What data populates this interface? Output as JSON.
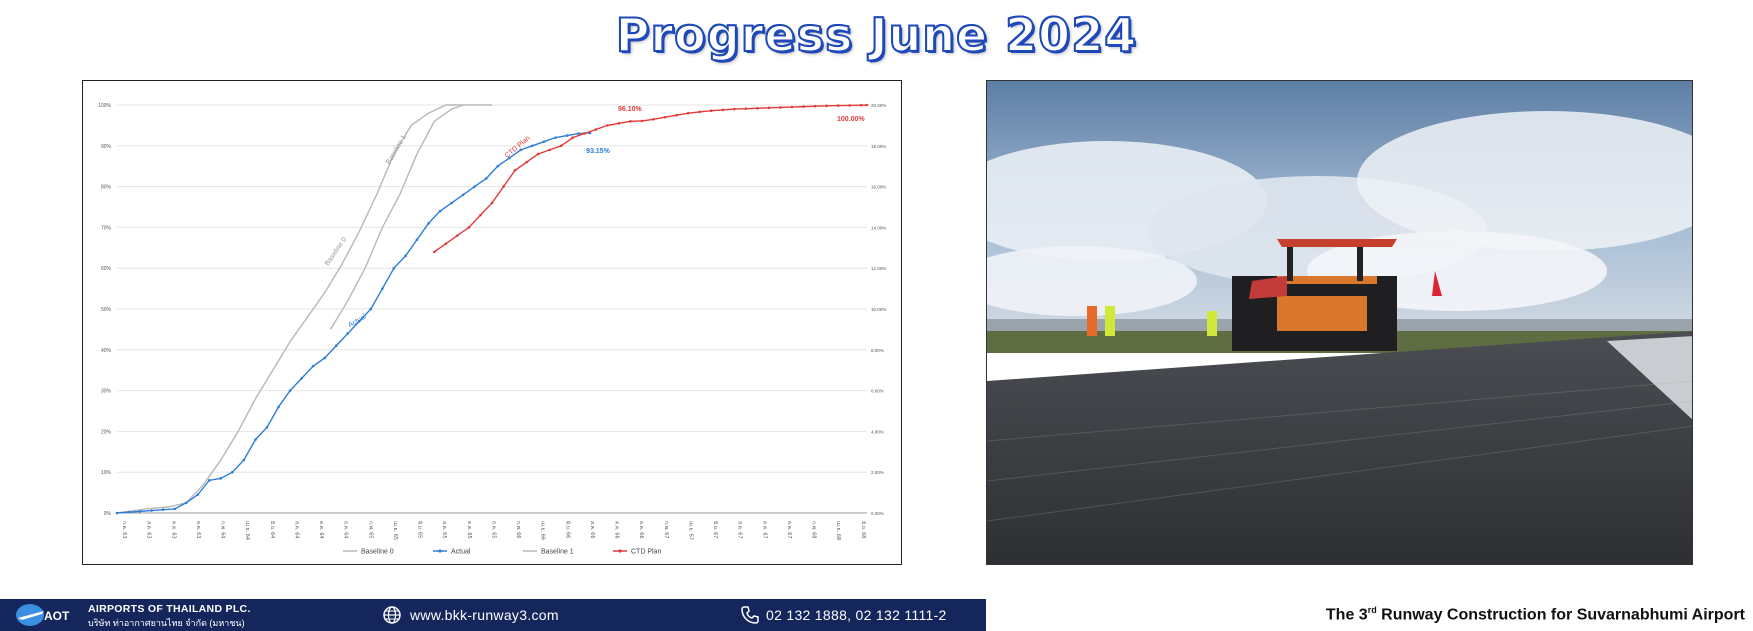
{
  "header": {
    "title": "Progress June 2024"
  },
  "footer": {
    "org_en": "AIRPORTS OF THAILAND PLC.",
    "org_th": "บริษัท ท่าอากาศยานไทย จำกัด (มหาชน)",
    "logo_text": "AOT",
    "website": "www.bkk-runway3.com",
    "phone": "02 132 1888, 02 132 1111-2",
    "project_pre": "The 3",
    "project_sup": "rd",
    "project_post": " Runway Construction for Suvarnabhumi Airport"
  },
  "colors": {
    "title_outline": "#1f49b8",
    "footer_bg": "#14265c",
    "actual": "#2e7dd7",
    "ctd": "#e23b3b",
    "baseline": "#b8b8b8"
  },
  "chart_data": {
    "type": "line",
    "yticks_left": [
      "0%",
      "10%",
      "20%",
      "30%",
      "40%",
      "50%",
      "60%",
      "70%",
      "80%",
      "90%",
      "100%"
    ],
    "yticks_right": [
      "0.00%",
      "2.00%",
      "4.00%",
      "6.00%",
      "8.00%",
      "10.00%",
      "12.00%",
      "14.00%",
      "16.00%",
      "18.00%",
      "20.00%"
    ],
    "xlabels": [
      "ก.ค. 63",
      "ส.ค. 63",
      "ต.ค. 63",
      "ธ.ค. 63",
      "ก.พ. 64",
      "เม.ย. 64",
      "มิ.ย. 64",
      "ส.ค. 64",
      "ต.ค. 64",
      "ธ.ค. 64",
      "ก.พ. 65",
      "เม.ย. 65",
      "มิ.ย. 65",
      "ส.ค. 65",
      "ต.ค. 65",
      "ธ.ค. 65",
      "ก.พ. 66",
      "เม.ย. 66",
      "มิ.ย. 66",
      "ส.ค. 66",
      "ต.ค. 66",
      "ธ.ค. 66",
      "ก.พ. 67",
      "เม.ย. 67",
      "มิ.ย. 67",
      "ส.ค. 67",
      "ต.ค. 67",
      "ธ.ค. 67",
      "ก.พ. 68",
      "เม.ย. 68",
      "มิ.ย. 68"
    ],
    "ylim": [
      0,
      100
    ],
    "series": [
      {
        "name": "Baseline 0",
        "color": "#b8b8b8",
        "x": [
          0,
          5,
          9,
          12,
          15,
          18,
          21,
          24,
          27,
          30,
          33,
          36,
          39,
          42,
          45,
          48,
          51,
          54,
          57,
          59,
          61,
          63,
          65
        ],
        "values": [
          0,
          1,
          1.5,
          2.5,
          7,
          13,
          20,
          28,
          35,
          42,
          48,
          54,
          61,
          69,
          78,
          88,
          95,
          98,
          100,
          100,
          100,
          100,
          100
        ]
      },
      {
        "name": "Actual",
        "color": "#2e7dd7",
        "x": [
          0,
          2,
          4,
          6,
          8,
          10,
          12,
          14,
          16,
          18,
          20,
          22,
          24,
          26,
          28,
          30,
          32,
          34,
          36,
          38,
          40,
          42,
          44,
          46,
          48,
          50,
          52,
          54,
          56,
          58,
          60,
          62,
          64,
          66,
          68,
          70,
          72,
          74,
          76,
          78,
          80,
          82
        ],
        "values": [
          0,
          0.2,
          0.4,
          0.6,
          0.8,
          1,
          2.5,
          4.5,
          8,
          8.5,
          10,
          13,
          18,
          21,
          26,
          30,
          33,
          36,
          38,
          41,
          44,
          47,
          50,
          55,
          60,
          63,
          67,
          71,
          74,
          76,
          78,
          80,
          82,
          85,
          87,
          89,
          90,
          91,
          92,
          92.5,
          93,
          93.15
        ]
      },
      {
        "name": "Baseline 1",
        "color": "#b8b8b8",
        "x": [
          37,
          40,
          43,
          46,
          49,
          52,
          55,
          58,
          60
        ],
        "values": [
          45,
          52,
          60,
          70,
          78,
          88,
          96,
          99,
          100
        ]
      },
      {
        "name": "CTD Plan",
        "color": "#e23b3b",
        "x": [
          55,
          57,
          59,
          61,
          63,
          65,
          67,
          69,
          71,
          73,
          75,
          77,
          79,
          81,
          83,
          85,
          87,
          89,
          91,
          93,
          95,
          97,
          99,
          101,
          103,
          105,
          107,
          109,
          111,
          113,
          115,
          117,
          119,
          121,
          123,
          125,
          127,
          129,
          130
        ],
        "values": [
          64,
          66,
          68,
          70,
          73,
          76,
          80,
          84,
          86,
          88,
          89,
          90,
          92,
          93,
          94,
          95,
          95.5,
          96,
          96.1,
          96.5,
          97,
          97.5,
          98,
          98.3,
          98.6,
          98.8,
          99,
          99.1,
          99.2,
          99.3,
          99.4,
          99.5,
          99.6,
          99.7,
          99.8,
          99.85,
          99.9,
          99.95,
          100
        ]
      }
    ],
    "annotations": [
      {
        "text": "Baseline 0",
        "series": "Baseline 0"
      },
      {
        "text": "Baseline 1",
        "series": "Baseline 1"
      },
      {
        "text": "Actual",
        "series": "Actual"
      },
      {
        "text": "CTD Plan",
        "series": "CTD Plan"
      },
      {
        "text": "93.15%",
        "series": "Actual"
      },
      {
        "text": "96.10%",
        "series": "CTD Plan"
      },
      {
        "text": "100.00%",
        "series": "CTD Plan"
      }
    ],
    "legend": [
      "Baseline 0",
      "Actual",
      "Baseline 1",
      "CTD Plan"
    ],
    "legend_position": "bottom",
    "grid": true
  }
}
